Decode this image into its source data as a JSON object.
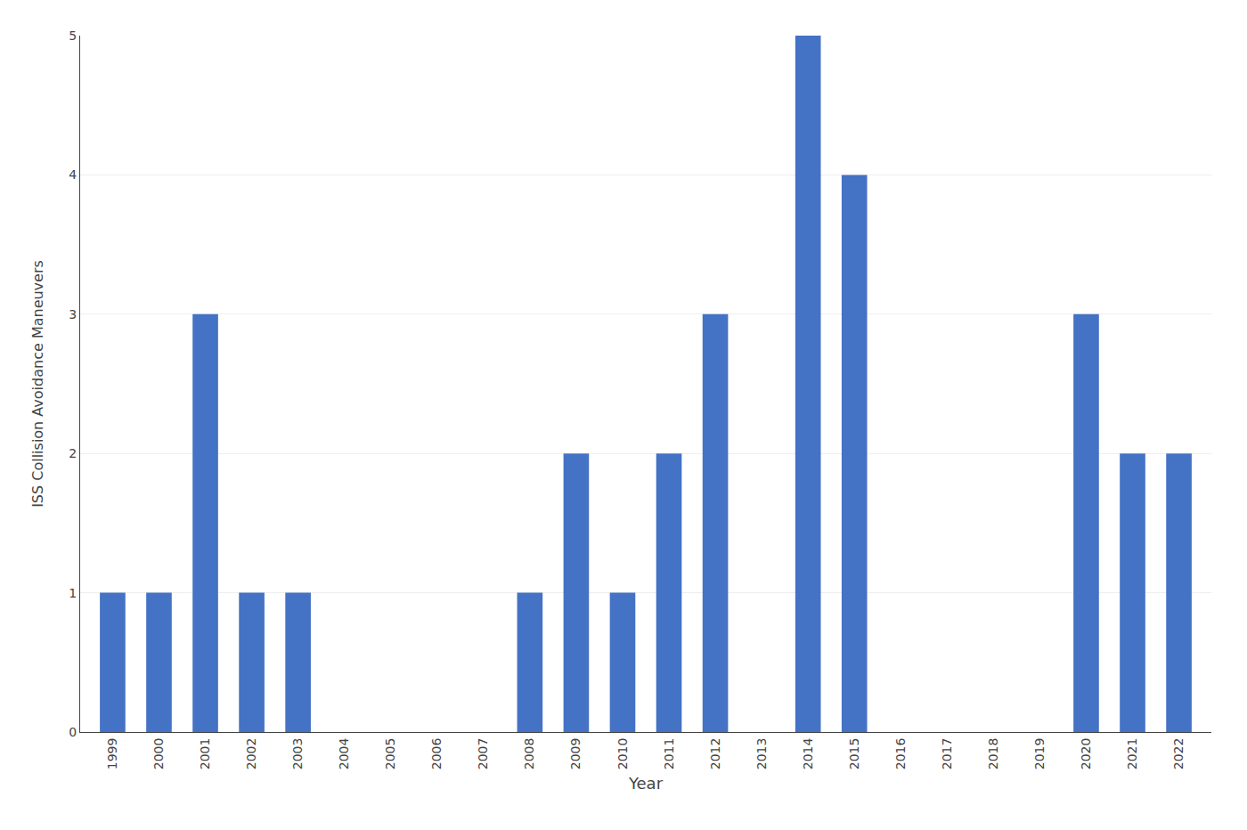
{
  "chart_data": {
    "type": "bar",
    "categories": [
      "1999",
      "2000",
      "2001",
      "2002",
      "2003",
      "2004",
      "2005",
      "2006",
      "2007",
      "2008",
      "2009",
      "2010",
      "2011",
      "2012",
      "2013",
      "2014",
      "2015",
      "2016",
      "2017",
      "2018",
      "2019",
      "2020",
      "2021",
      "2022"
    ],
    "values": [
      1,
      1,
      3,
      1,
      1,
      0,
      0,
      0,
      0,
      1,
      2,
      1,
      2,
      3,
      0,
      5,
      4,
      0,
      0,
      0,
      0,
      3,
      2,
      2
    ],
    "color": "#4472C4",
    "xlabel": "Year",
    "ylabel": "ISS Collision Avoidance Maneuvers",
    "ylim": [
      0,
      5
    ],
    "yticks": [
      0,
      1,
      2,
      3,
      4,
      5
    ],
    "grid": true
  }
}
